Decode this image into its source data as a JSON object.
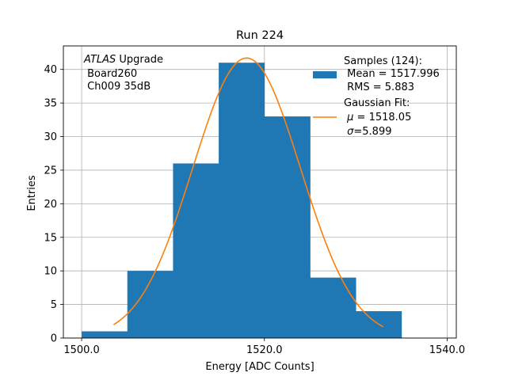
{
  "chart_data": {
    "type": "bar",
    "title": "Run 224",
    "xlabel": "Energy [ADC Counts]",
    "ylabel": "Entries",
    "xlim": [
      1498,
      1541
    ],
    "ylim": [
      0,
      43.5
    ],
    "grid": true,
    "legend_position": "top-right",
    "x_ticks": [
      1500.0,
      1520.0,
      1540.0
    ],
    "x_tick_labels": [
      "1500.0",
      "1520.0",
      "1540.0"
    ],
    "y_ticks": [
      0,
      5,
      10,
      15,
      20,
      25,
      30,
      35,
      40
    ],
    "y_tick_labels": [
      "0",
      "5",
      "10",
      "15",
      "20",
      "25",
      "30",
      "35",
      "40"
    ],
    "histogram": {
      "bin_edges": [
        1500,
        1505,
        1510,
        1515,
        1520,
        1525,
        1530,
        1535
      ],
      "counts": [
        1,
        10,
        26,
        41,
        33,
        9,
        4
      ],
      "color": "#1f77b4"
    },
    "fit": {
      "mu": 1518.05,
      "sigma": 5.899,
      "amplitude": 41.7,
      "x_range": [
        1503.5,
        1533
      ],
      "color": "#ff7f0e"
    },
    "annotation": {
      "line1_italic": "ATLAS",
      "line1_rest": " Upgrade",
      "line2": " Board260",
      "line3": " Ch009 35dB"
    },
    "legend": {
      "hist_line1": "Samples (124):",
      "hist_line2": " Mean = 1517.996",
      "hist_line3": " RMS = 5.883",
      "fit_line1": "Gaussian Fit:",
      "fit_mu_symbol": "μ",
      "fit_mu_rest": " = 1518.05",
      "fit_sigma_symbol": "σ",
      "fit_sigma_rest": "=5.899"
    }
  }
}
